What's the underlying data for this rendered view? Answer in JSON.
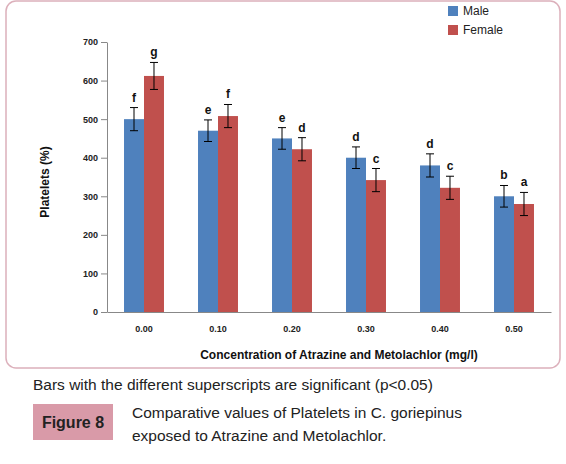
{
  "chart_data": {
    "type": "bar",
    "x_label": "Concentration of Atrazine and Metolachlor (mg/l)",
    "y_label": "Platelets (%)",
    "categories": [
      "0.00",
      "0.10",
      "0.20",
      "0.30",
      "0.40",
      "0.50"
    ],
    "series": [
      {
        "name": "Male",
        "color": "#4f81bd",
        "values": [
          500,
          470,
          450,
          400,
          380,
          300
        ],
        "errors": [
          30,
          28,
          28,
          28,
          30,
          28
        ],
        "superscripts": [
          "f",
          "e",
          "e",
          "d",
          "d",
          "b"
        ]
      },
      {
        "name": "Female",
        "color": "#c0504d",
        "values": [
          612,
          508,
          422,
          342,
          322,
          280
        ],
        "errors": [
          35,
          30,
          30,
          30,
          30,
          30
        ],
        "superscripts": [
          "g",
          "f",
          "d",
          "c",
          "c",
          "a"
        ]
      }
    ],
    "ylim": [
      0,
      700
    ],
    "yticks": [
      0,
      100,
      200,
      300,
      400,
      500,
      600,
      700
    ],
    "grid": false,
    "legend": "upper right",
    "note": "Bars with the different superscripts are significant (p<0.05)",
    "figure_label": "Figure 8",
    "caption": [
      "Comparative values of Platelets in C. goriepinus",
      "exposed to Atrazine and Metolachlor."
    ]
  }
}
